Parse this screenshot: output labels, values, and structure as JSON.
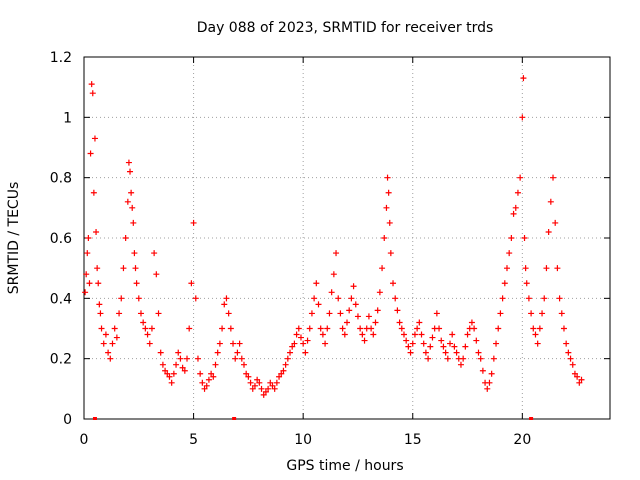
{
  "chart_data": {
    "type": "scatter",
    "title": "Day 088 of 2023, SRMTID for receiver trds",
    "xlabel": "GPS time / hours",
    "ylabel": "SRMTID / TECUs",
    "xlim": [
      0,
      24
    ],
    "ylim": [
      0,
      1.2
    ],
    "x_ticks": [
      0,
      5,
      10,
      15,
      20
    ],
    "x_tick_labels": [
      "0",
      "5",
      "10",
      "15",
      "20"
    ],
    "y_ticks": [
      0,
      0.2,
      0.4,
      0.6,
      0.8,
      1.0,
      1.2
    ],
    "y_tick_labels": [
      "0",
      "0.2",
      "0.4",
      "0.6",
      "0.8",
      "1",
      "1.2"
    ],
    "grid": true,
    "marker": "plus",
    "color": "#ff0000",
    "series": [
      {
        "name": "SRMTID",
        "x": [
          0.05,
          0.1,
          0.15,
          0.2,
          0.25,
          0.3,
          0.35,
          0.4,
          0.45,
          0.5,
          0.55,
          0.6,
          0.65,
          0.7,
          0.75,
          0.8,
          0.9,
          1.0,
          1.1,
          1.2,
          1.3,
          1.4,
          1.5,
          1.6,
          1.7,
          1.8,
          1.9,
          2.0,
          2.05,
          2.1,
          2.15,
          2.2,
          2.25,
          2.3,
          2.35,
          2.4,
          2.5,
          2.6,
          2.7,
          2.8,
          2.9,
          3.0,
          3.1,
          3.2,
          3.3,
          3.4,
          3.5,
          3.6,
          3.7,
          3.8,
          3.9,
          4.0,
          4.1,
          4.2,
          4.3,
          4.4,
          4.5,
          4.6,
          4.7,
          4.8,
          4.9,
          5.0,
          5.1,
          5.2,
          5.3,
          5.4,
          5.5,
          5.6,
          5.7,
          5.8,
          5.9,
          6.0,
          6.1,
          6.2,
          6.3,
          6.4,
          6.5,
          6.6,
          6.7,
          6.8,
          6.9,
          7.0,
          7.1,
          7.2,
          7.3,
          7.4,
          7.5,
          7.6,
          7.7,
          7.8,
          7.9,
          8.0,
          8.1,
          8.2,
          8.3,
          8.4,
          8.5,
          8.6,
          8.7,
          8.8,
          8.9,
          9.0,
          9.1,
          9.2,
          9.3,
          9.4,
          9.5,
          9.6,
          9.7,
          9.8,
          9.9,
          10.0,
          10.1,
          10.2,
          10.3,
          10.4,
          10.5,
          10.6,
          10.7,
          10.8,
          10.9,
          11.0,
          11.1,
          11.2,
          11.3,
          11.4,
          11.5,
          11.6,
          11.7,
          11.8,
          11.9,
          12.0,
          12.1,
          12.2,
          12.3,
          12.4,
          12.5,
          12.6,
          12.7,
          12.8,
          12.9,
          13.0,
          13.1,
          13.2,
          13.3,
          13.4,
          13.5,
          13.6,
          13.7,
          13.8,
          13.85,
          13.9,
          13.95,
          14.0,
          14.1,
          14.2,
          14.3,
          14.4,
          14.5,
          14.6,
          14.7,
          14.8,
          14.9,
          15.0,
          15.1,
          15.2,
          15.3,
          15.4,
          15.5,
          15.6,
          15.7,
          15.8,
          15.9,
          16.0,
          16.1,
          16.2,
          16.3,
          16.4,
          16.5,
          16.6,
          16.7,
          16.8,
          16.9,
          17.0,
          17.1,
          17.2,
          17.3,
          17.4,
          17.5,
          17.6,
          17.7,
          17.8,
          17.9,
          18.0,
          18.1,
          18.2,
          18.3,
          18.4,
          18.5,
          18.6,
          18.7,
          18.8,
          18.9,
          19.0,
          19.1,
          19.2,
          19.3,
          19.4,
          19.5,
          19.6,
          19.7,
          19.8,
          19.9,
          20.0,
          20.05,
          20.1,
          20.15,
          20.2,
          20.3,
          20.4,
          20.5,
          20.6,
          20.7,
          20.8,
          20.9,
          21.0,
          21.1,
          21.2,
          21.3,
          21.4,
          21.5,
          21.6,
          21.7,
          21.8,
          21.9,
          22.0,
          22.1,
          22.2,
          22.3,
          22.4,
          22.5,
          22.6,
          22.7
        ],
        "y": [
          0.42,
          0.48,
          0.55,
          0.6,
          0.45,
          0.88,
          1.11,
          1.08,
          0.75,
          0.93,
          0.62,
          0.5,
          0.45,
          0.38,
          0.35,
          0.3,
          0.25,
          0.28,
          0.22,
          0.2,
          0.25,
          0.3,
          0.27,
          0.35,
          0.4,
          0.5,
          0.6,
          0.72,
          0.85,
          0.82,
          0.75,
          0.7,
          0.65,
          0.55,
          0.5,
          0.45,
          0.4,
          0.35,
          0.32,
          0.3,
          0.28,
          0.25,
          0.3,
          0.55,
          0.48,
          0.35,
          0.22,
          0.18,
          0.16,
          0.15,
          0.14,
          0.12,
          0.15,
          0.18,
          0.22,
          0.2,
          0.17,
          0.16,
          0.2,
          0.3,
          0.45,
          0.65,
          0.4,
          0.2,
          0.15,
          0.12,
          0.1,
          0.11,
          0.13,
          0.15,
          0.14,
          0.18,
          0.22,
          0.25,
          0.3,
          0.38,
          0.4,
          0.35,
          0.3,
          0.25,
          0.2,
          0.22,
          0.25,
          0.2,
          0.18,
          0.15,
          0.14,
          0.12,
          0.1,
          0.11,
          0.13,
          0.12,
          0.1,
          0.08,
          0.09,
          0.1,
          0.12,
          0.11,
          0.1,
          0.12,
          0.14,
          0.15,
          0.16,
          0.18,
          0.2,
          0.22,
          0.24,
          0.25,
          0.28,
          0.3,
          0.27,
          0.25,
          0.22,
          0.26,
          0.3,
          0.35,
          0.4,
          0.45,
          0.38,
          0.3,
          0.28,
          0.25,
          0.3,
          0.35,
          0.42,
          0.48,
          0.55,
          0.4,
          0.35,
          0.3,
          0.28,
          0.32,
          0.36,
          0.4,
          0.44,
          0.38,
          0.34,
          0.3,
          0.28,
          0.26,
          0.3,
          0.34,
          0.3,
          0.28,
          0.32,
          0.36,
          0.42,
          0.5,
          0.6,
          0.7,
          0.8,
          0.75,
          0.65,
          0.55,
          0.45,
          0.4,
          0.36,
          0.32,
          0.3,
          0.28,
          0.26,
          0.24,
          0.22,
          0.25,
          0.28,
          0.3,
          0.32,
          0.28,
          0.25,
          0.22,
          0.2,
          0.24,
          0.27,
          0.3,
          0.35,
          0.3,
          0.26,
          0.24,
          0.22,
          0.2,
          0.25,
          0.28,
          0.24,
          0.22,
          0.2,
          0.18,
          0.2,
          0.24,
          0.28,
          0.3,
          0.32,
          0.3,
          0.26,
          0.22,
          0.2,
          0.16,
          0.12,
          0.1,
          0.12,
          0.15,
          0.2,
          0.25,
          0.3,
          0.35,
          0.4,
          0.45,
          0.5,
          0.55,
          0.6,
          0.68,
          0.7,
          0.75,
          0.8,
          1.0,
          1.13,
          0.6,
          0.5,
          0.45,
          0.4,
          0.35,
          0.3,
          0.28,
          0.25,
          0.3,
          0.35,
          0.4,
          0.5,
          0.62,
          0.72,
          0.8,
          0.65,
          0.5,
          0.4,
          0.35,
          0.3,
          0.25,
          0.22,
          0.2,
          0.18,
          0.15,
          0.14,
          0.12,
          0.13
        ]
      }
    ],
    "baseline_markers_x": [
      0.5,
      6.85,
      20.4
    ]
  }
}
